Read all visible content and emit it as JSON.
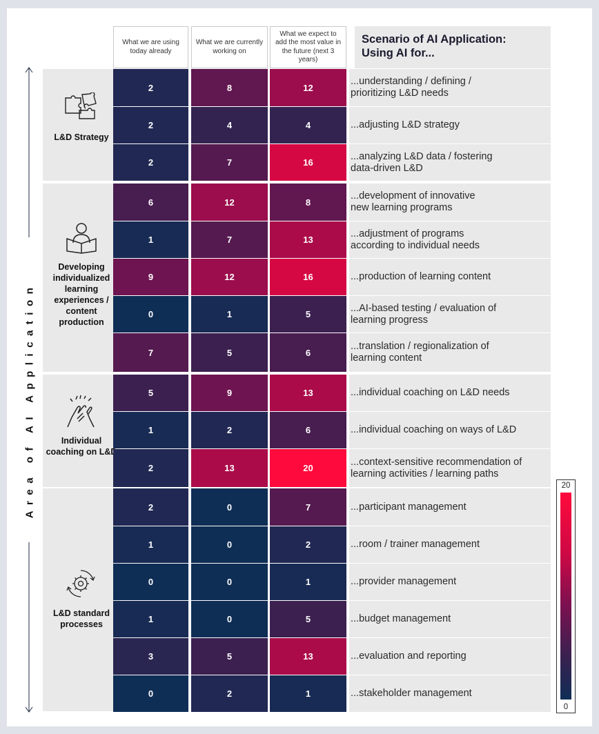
{
  "columns": [
    "What we are using today already",
    "What we are currently working on",
    "What we expect to add the most value in the future (next 3 years)"
  ],
  "scenario_header": [
    "Scenario of AI Application:",
    "Using AI for..."
  ],
  "axis_title": "Area of AI Application",
  "areas": [
    {
      "label": "L&D Strategy",
      "icon": "puzzle-icon"
    },
    {
      "label": "Developing individualized learning experiences / content production",
      "icon": "reader-icon"
    },
    {
      "label": "Individual coaching on L&D",
      "icon": "high-five-icon"
    },
    {
      "label": "L&D standard processes",
      "icon": "gear-cycle-icon"
    }
  ],
  "rows": [
    {
      "scenario": "...understanding / defining /\n prioritizing L&D needs"
    },
    {
      "scenario": "...adjusting L&D strategy"
    },
    {
      "scenario": "...analyzing L&D data / fostering\n data-driven L&D"
    },
    {
      "scenario": "...development of innovative\n new learning programs"
    },
    {
      "scenario": "...adjustment of programs\n according to individual needs"
    },
    {
      "scenario": "...production of learning content"
    },
    {
      "scenario": "...AI-based testing / evaluation of\n learning progress"
    },
    {
      "scenario": "...translation / regionalization of\n learning content"
    },
    {
      "scenario": "...individual coaching on L&D needs"
    },
    {
      "scenario": "...individual coaching on ways of L&D"
    },
    {
      "scenario": "...context-sensitive recommendation of\n learning activities / learning paths"
    },
    {
      "scenario": "...participant management"
    },
    {
      "scenario": "...room / trainer management"
    },
    {
      "scenario": "...provider management"
    },
    {
      "scenario": "...budget management"
    },
    {
      "scenario": "...evaluation and reporting"
    },
    {
      "scenario": "...stakeholder management"
    }
  ],
  "colors": {
    "scale_low": "#0f2e55",
    "scale_mid": "#7a1150",
    "scale_high": "#ff0a3c",
    "panel_grey": "#e9e9ea"
  },
  "chart_data": {
    "type": "heatmap",
    "title": "Scenario of AI Application: Using AI for...",
    "ylabel": "Area of AI Application",
    "x": [
      "What we are using today already",
      "What we are currently working on",
      "What we expect to add the most value in the future (next 3 years)"
    ],
    "groups": [
      {
        "name": "L&D Strategy",
        "rows": [
          0,
          1,
          2
        ]
      },
      {
        "name": "Developing individualized learning experiences / content production",
        "rows": [
          3,
          4,
          5,
          6,
          7
        ]
      },
      {
        "name": "Individual coaching on L&D",
        "rows": [
          8,
          9,
          10
        ]
      },
      {
        "name": "L&D standard processes",
        "rows": [
          11,
          12,
          13,
          14,
          15,
          16
        ]
      }
    ],
    "values": [
      [
        2,
        8,
        12
      ],
      [
        2,
        4,
        4
      ],
      [
        2,
        7,
        16
      ],
      [
        6,
        12,
        8
      ],
      [
        1,
        7,
        13
      ],
      [
        9,
        12,
        16
      ],
      [
        0,
        1,
        5
      ],
      [
        7,
        5,
        6
      ],
      [
        5,
        9,
        13
      ],
      [
        1,
        2,
        6
      ],
      [
        2,
        13,
        20
      ],
      [
        2,
        0,
        7
      ],
      [
        1,
        0,
        2
      ],
      [
        0,
        0,
        1
      ],
      [
        1,
        0,
        5
      ],
      [
        3,
        5,
        13
      ],
      [
        0,
        2,
        1
      ]
    ],
    "color_scale": {
      "min": 0,
      "max": 20
    }
  }
}
